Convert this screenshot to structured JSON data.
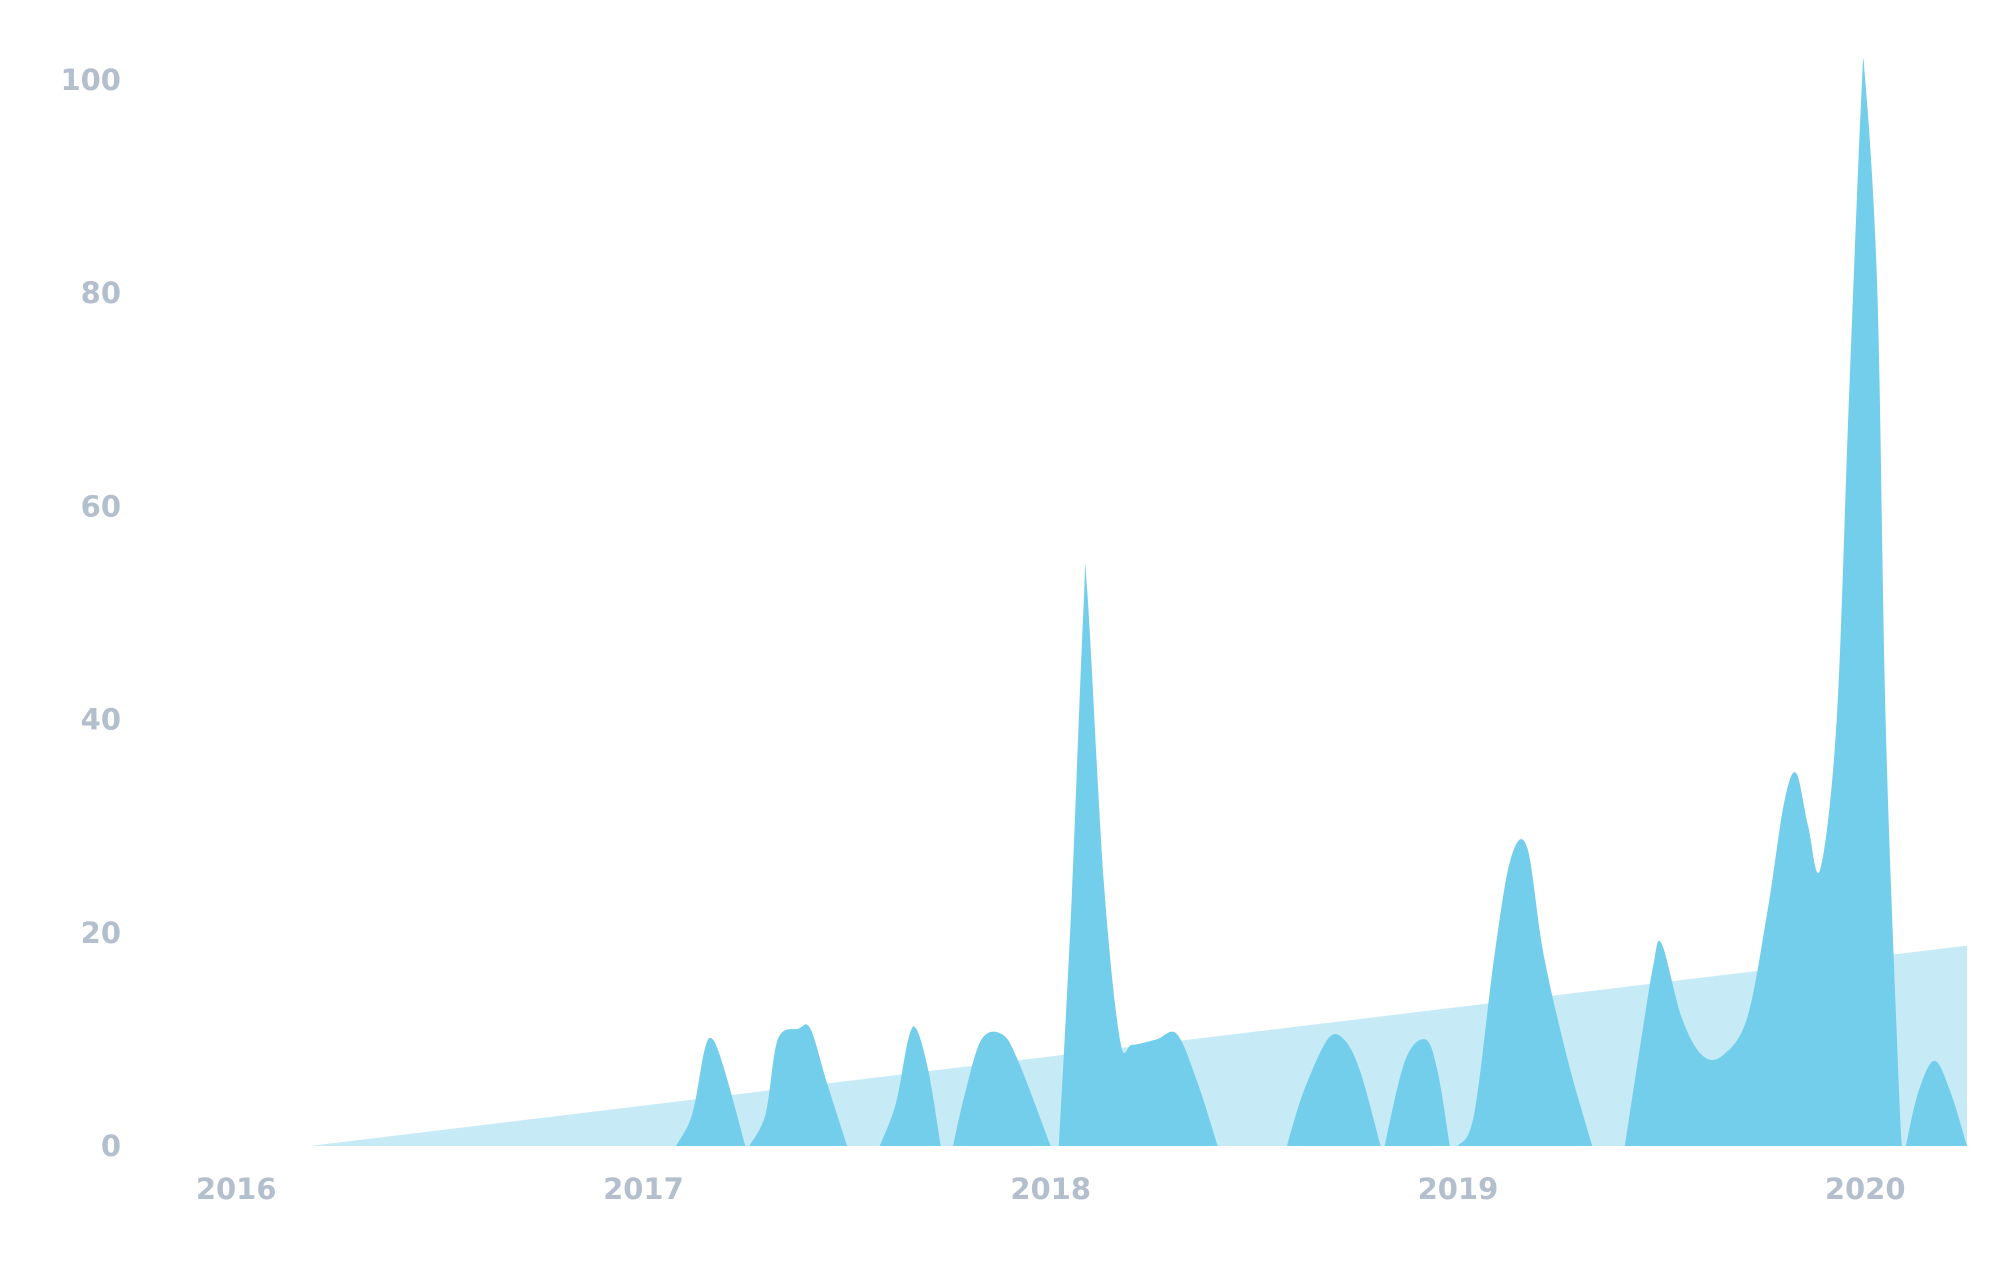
{
  "chart_data": {
    "type": "area",
    "title": "",
    "xlabel": "",
    "ylabel": "",
    "ylim": [
      0,
      100
    ],
    "yticks": [
      "0",
      "20",
      "40",
      "60",
      "80",
      "100"
    ],
    "xticks": [
      {
        "label": "2016",
        "value": 2016.0
      },
      {
        "label": "2017",
        "value": 2017.0
      },
      {
        "label": "2018",
        "value": 2018.0
      },
      {
        "label": "2019",
        "value": 2019.0
      },
      {
        "label": "2020",
        "value": 2020.0
      }
    ],
    "xlim": [
      2015.42,
      2020.25
    ],
    "grid": false,
    "legend": "none",
    "colors": {
      "series": "#73ceeb",
      "trend": "#c6eaf6",
      "tick_text": "#b3bfcc",
      "background": "#ffffff"
    },
    "series": [
      {
        "values": [
          [
            2017.08,
            0
          ],
          [
            2017.12,
            3
          ],
          [
            2017.15,
            9
          ],
          [
            2017.17,
            10
          ],
          [
            2017.2,
            7
          ],
          [
            2017.25,
            0
          ],
          [
            2017.26,
            0
          ],
          [
            2017.3,
            3
          ],
          [
            2017.33,
            10
          ],
          [
            2017.38,
            11
          ],
          [
            2017.41,
            11
          ],
          [
            2017.45,
            6
          ],
          [
            2017.5,
            0
          ],
          [
            2017.58,
            0
          ],
          [
            2017.62,
            4
          ],
          [
            2017.65,
            10
          ],
          [
            2017.67,
            11
          ],
          [
            2017.7,
            7
          ],
          [
            2017.73,
            0
          ],
          [
            2017.76,
            0
          ],
          [
            2017.79,
            5
          ],
          [
            2017.83,
            10
          ],
          [
            2017.88,
            10.5
          ],
          [
            2017.92,
            8
          ],
          [
            2018.0,
            0
          ],
          [
            2018.02,
            0
          ],
          [
            2018.05,
            22
          ],
          [
            2018.08,
            50
          ],
          [
            2018.09,
            52
          ],
          [
            2018.13,
            25
          ],
          [
            2018.17,
            10
          ],
          [
            2018.2,
            9.5
          ],
          [
            2018.26,
            10
          ],
          [
            2018.31,
            10.5
          ],
          [
            2018.36,
            6
          ],
          [
            2018.41,
            0
          ],
          [
            2018.58,
            0
          ],
          [
            2018.62,
            5
          ],
          [
            2018.68,
            10
          ],
          [
            2018.72,
            10
          ],
          [
            2018.76,
            7
          ],
          [
            2018.81,
            0
          ],
          [
            2018.82,
            0
          ],
          [
            2018.87,
            8
          ],
          [
            2018.92,
            10
          ],
          [
            2018.95,
            7
          ],
          [
            2018.98,
            0
          ],
          [
            2019.0,
            0
          ],
          [
            2019.04,
            3
          ],
          [
            2019.09,
            18
          ],
          [
            2019.13,
            27
          ],
          [
            2019.17,
            28
          ],
          [
            2019.21,
            18
          ],
          [
            2019.27,
            8
          ],
          [
            2019.33,
            0
          ],
          [
            2019.41,
            0
          ],
          [
            2019.45,
            10
          ],
          [
            2019.48,
            17
          ],
          [
            2019.5,
            19
          ],
          [
            2019.55,
            12
          ],
          [
            2019.6,
            8.5
          ],
          [
            2019.65,
            8.5
          ],
          [
            2019.71,
            12
          ],
          [
            2019.76,
            22
          ],
          [
            2019.8,
            32
          ],
          [
            2019.83,
            35
          ],
          [
            2019.86,
            30
          ],
          [
            2019.89,
            26
          ],
          [
            2019.93,
            40
          ],
          [
            2019.96,
            70
          ],
          [
            2019.99,
            98
          ],
          [
            2020.0,
            100
          ],
          [
            2020.03,
            80
          ],
          [
            2020.05,
            40
          ],
          [
            2020.08,
            8
          ],
          [
            2020.09,
            0
          ],
          [
            2020.1,
            0
          ],
          [
            2020.13,
            5
          ],
          [
            2020.17,
            8
          ],
          [
            2020.21,
            5
          ],
          [
            2020.25,
            0
          ]
        ]
      },
      {
        "values": [
          [
            2016.18,
            0
          ],
          [
            2020.25,
            18.8
          ]
        ]
      }
    ]
  }
}
